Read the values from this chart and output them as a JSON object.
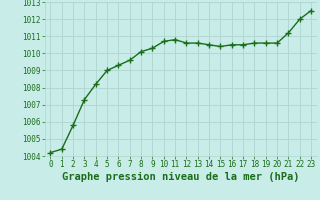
{
  "x": [
    0,
    1,
    2,
    3,
    4,
    5,
    6,
    7,
    8,
    9,
    10,
    11,
    12,
    13,
    14,
    15,
    16,
    17,
    18,
    19,
    20,
    21,
    22,
    23
  ],
  "y": [
    1004.2,
    1004.4,
    1005.8,
    1007.3,
    1008.2,
    1009.0,
    1009.3,
    1009.6,
    1010.1,
    1010.3,
    1010.7,
    1010.8,
    1010.6,
    1010.6,
    1010.5,
    1010.4,
    1010.5,
    1010.5,
    1010.6,
    1010.6,
    1010.6,
    1011.2,
    1012.0,
    1012.5
  ],
  "line_color": "#1a6e1a",
  "marker_color": "#1a6e1a",
  "bg_color": "#c8ece8",
  "grid_color": "#b0d4ce",
  "xlabel": "Graphe pression niveau de la mer (hPa)",
  "xlabel_color": "#1a6e1a",
  "tick_color": "#1a6e1a",
  "ylim": [
    1004,
    1013
  ],
  "xlim_min": -0.5,
  "xlim_max": 23.5,
  "yticks": [
    1004,
    1005,
    1006,
    1007,
    1008,
    1009,
    1010,
    1011,
    1012,
    1013
  ],
  "xticks": [
    0,
    1,
    2,
    3,
    4,
    5,
    6,
    7,
    8,
    9,
    10,
    11,
    12,
    13,
    14,
    15,
    16,
    17,
    18,
    19,
    20,
    21,
    22,
    23
  ],
  "tick_fontsize": 5.5,
  "xlabel_fontsize": 7.5,
  "line_width": 1.0,
  "marker_size": 4.0
}
